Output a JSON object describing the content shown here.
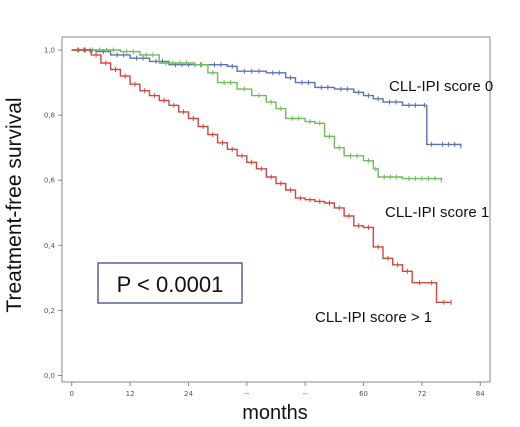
{
  "chart_data": {
    "type": "line",
    "step": true,
    "xlabel": "months",
    "ylabel": "Treatment-free survival",
    "xlim": [
      -2,
      86
    ],
    "ylim": [
      -0.02,
      1.04
    ],
    "x_ticks": [
      {
        "value": 0,
        "label": "0"
      },
      {
        "value": 12,
        "label": "12"
      },
      {
        "value": 24,
        "label": "24"
      },
      {
        "value": 36,
        "label": "--"
      },
      {
        "value": 48,
        "label": "--"
      },
      {
        "value": 60,
        "label": "60"
      },
      {
        "value": 72,
        "label": "72"
      },
      {
        "value": 84,
        "label": "84"
      }
    ],
    "y_ticks": [
      {
        "value": 0.0,
        "label": "0,0"
      },
      {
        "value": 0.2,
        "label": "0,2"
      },
      {
        "value": 0.4,
        "label": "0,4"
      },
      {
        "value": 0.6,
        "label": "0,6"
      },
      {
        "value": 0.8,
        "label": "0,8"
      },
      {
        "value": 1.0,
        "label": "1,0"
      }
    ],
    "annotation": "P < 0.0001",
    "series": [
      {
        "name": "CLL-IPI score 0",
        "color": "#5b72b8",
        "points": [
          [
            0,
            1.0
          ],
          [
            5,
            0.995
          ],
          [
            8,
            0.985
          ],
          [
            12,
            0.975
          ],
          [
            16,
            0.965
          ],
          [
            20,
            0.955
          ],
          [
            28,
            0.955
          ],
          [
            32,
            0.95
          ],
          [
            34,
            0.935
          ],
          [
            40,
            0.93
          ],
          [
            44,
            0.915
          ],
          [
            46,
            0.9
          ],
          [
            50,
            0.885
          ],
          [
            54,
            0.88
          ],
          [
            58,
            0.87
          ],
          [
            60,
            0.86
          ],
          [
            62,
            0.85
          ],
          [
            64,
            0.84
          ],
          [
            68,
            0.83
          ],
          [
            72,
            0.83
          ],
          [
            73,
            0.71
          ],
          [
            75,
            0.71
          ],
          [
            80,
            0.705
          ]
        ]
      },
      {
        "name": "CLL-IPI score 1",
        "color": "#6cbd5b",
        "points": [
          [
            0,
            1.0
          ],
          [
            10,
            0.995
          ],
          [
            14,
            0.985
          ],
          [
            18,
            0.96
          ],
          [
            25,
            0.955
          ],
          [
            28,
            0.93
          ],
          [
            30,
            0.9
          ],
          [
            34,
            0.88
          ],
          [
            37,
            0.86
          ],
          [
            40,
            0.84
          ],
          [
            42,
            0.82
          ],
          [
            44,
            0.79
          ],
          [
            48,
            0.78
          ],
          [
            50,
            0.775
          ],
          [
            52,
            0.735
          ],
          [
            54,
            0.7
          ],
          [
            56,
            0.675
          ],
          [
            60,
            0.66
          ],
          [
            62,
            0.635
          ],
          [
            63,
            0.61
          ],
          [
            68,
            0.605
          ],
          [
            76,
            0.6
          ]
        ]
      },
      {
        "name": "CLL-IPI score > 1",
        "color": "#d0493f",
        "points": [
          [
            0,
            1.0
          ],
          [
            4,
            0.985
          ],
          [
            6,
            0.96
          ],
          [
            8,
            0.94
          ],
          [
            10,
            0.92
          ],
          [
            12,
            0.895
          ],
          [
            14,
            0.875
          ],
          [
            16,
            0.86
          ],
          [
            18,
            0.845
          ],
          [
            20,
            0.83
          ],
          [
            22,
            0.81
          ],
          [
            24,
            0.79
          ],
          [
            26,
            0.765
          ],
          [
            28,
            0.74
          ],
          [
            30,
            0.715
          ],
          [
            32,
            0.695
          ],
          [
            34,
            0.675
          ],
          [
            36,
            0.655
          ],
          [
            38,
            0.635
          ],
          [
            40,
            0.61
          ],
          [
            42,
            0.59
          ],
          [
            44,
            0.57
          ],
          [
            46,
            0.545
          ],
          [
            48,
            0.54
          ],
          [
            50,
            0.535
          ],
          [
            52,
            0.53
          ],
          [
            54,
            0.515
          ],
          [
            56,
            0.49
          ],
          [
            58,
            0.46
          ],
          [
            60,
            0.455
          ],
          [
            62,
            0.395
          ],
          [
            64,
            0.36
          ],
          [
            66,
            0.34
          ],
          [
            68,
            0.32
          ],
          [
            70,
            0.285
          ],
          [
            73,
            0.285
          ],
          [
            75,
            0.225
          ],
          [
            78,
            0.225
          ]
        ]
      }
    ]
  }
}
